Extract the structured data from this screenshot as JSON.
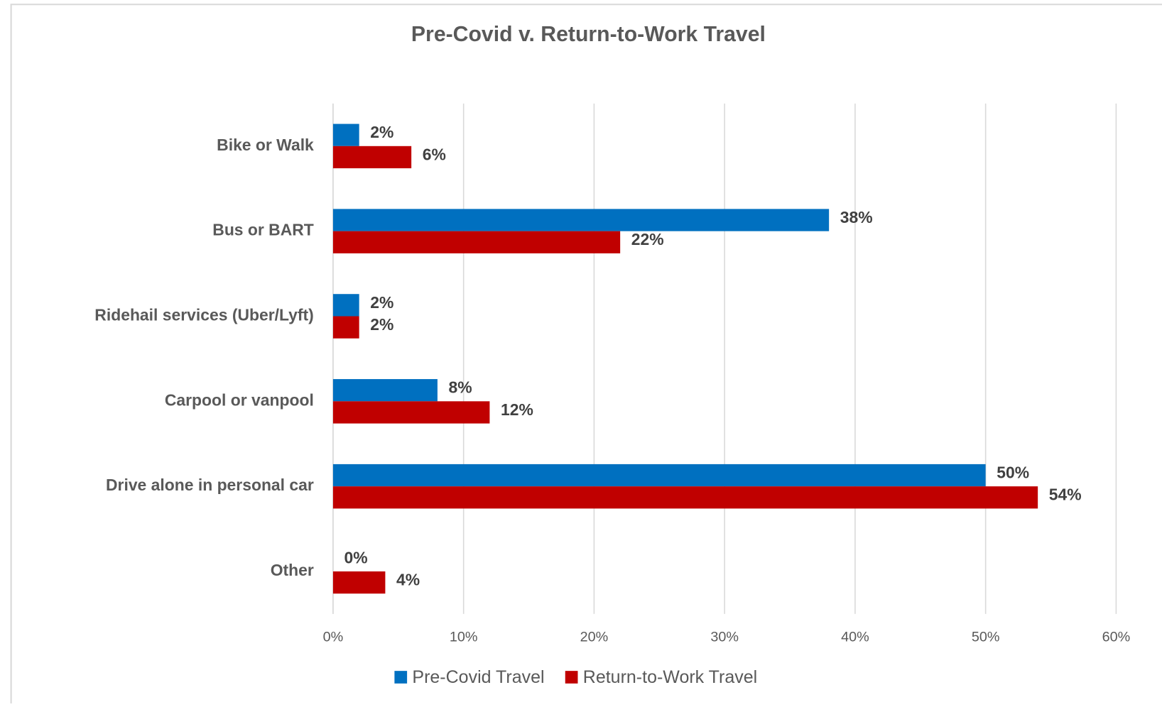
{
  "chart_data": {
    "type": "bar",
    "orientation": "horizontal",
    "title": "Pre-Covid v. Return-to-Work Travel",
    "categories": [
      "Bike or Walk",
      "Bus or BART",
      "Ridehail services (Uber/Lyft)",
      "Carpool or vanpool",
      "Drive alone in personal car",
      "Other"
    ],
    "series": [
      {
        "name": "Pre-Covid Travel",
        "color": "#0070c0",
        "values": [
          2,
          38,
          2,
          8,
          50,
          0
        ],
        "value_labels": [
          "2%",
          "38%",
          "2%",
          "8%",
          "50%",
          "0%"
        ]
      },
      {
        "name": "Return-to-Work Travel",
        "color": "#c00000",
        "values": [
          6,
          22,
          2,
          12,
          54,
          4
        ],
        "value_labels": [
          "6%",
          "22%",
          "2%",
          "12%",
          "54%",
          "4%"
        ]
      }
    ],
    "xlim": [
      0,
      60
    ],
    "xticks": [
      {
        "value": 0,
        "label": "0%"
      },
      {
        "value": 10,
        "label": "10%"
      },
      {
        "value": 20,
        "label": "20%"
      },
      {
        "value": 30,
        "label": "30%"
      },
      {
        "value": 40,
        "label": "40%"
      },
      {
        "value": 50,
        "label": "50%"
      },
      {
        "value": 60,
        "label": "60%"
      }
    ],
    "grid": true,
    "legend": "bottom"
  }
}
